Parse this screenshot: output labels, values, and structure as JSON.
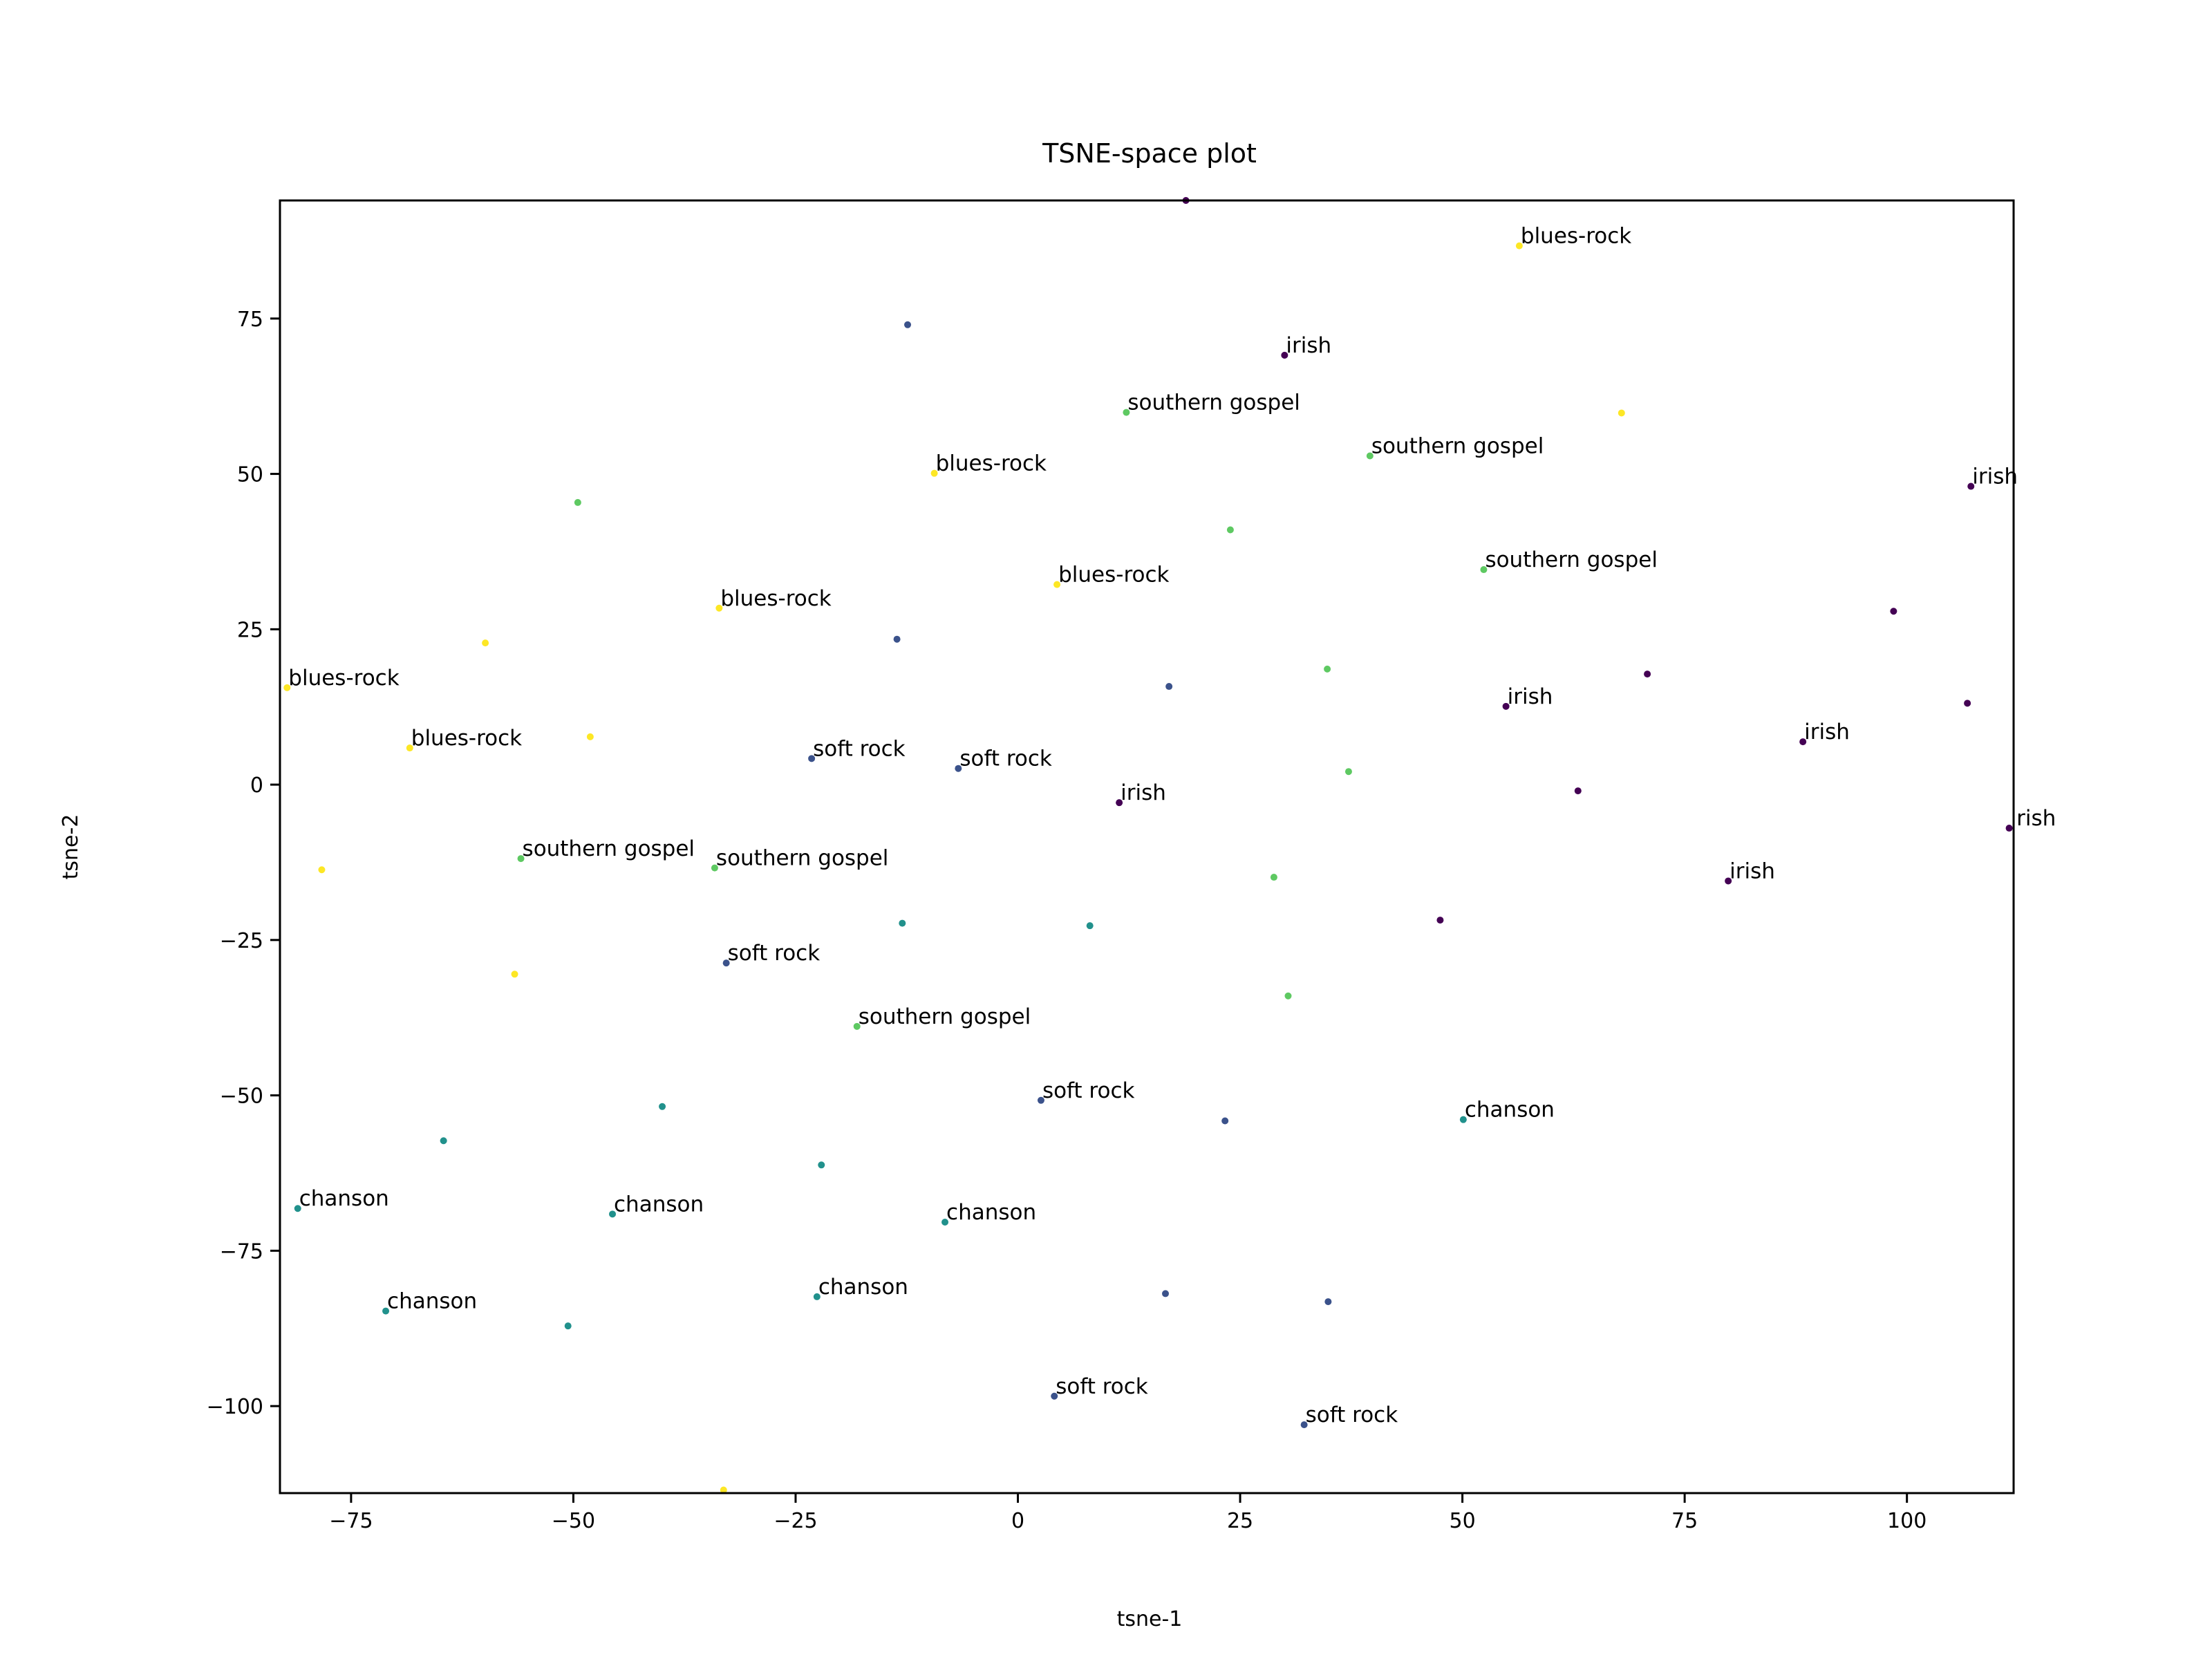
{
  "chart_data": {
    "type": "scatter",
    "title": "TSNE-space plot",
    "xlabel": "tsne-1",
    "ylabel": "tsne-2",
    "xlim": [
      -83,
      112
    ],
    "ylim": [
      -114,
      94
    ],
    "grid": false,
    "xticks": [
      -75,
      -50,
      -25,
      0,
      25,
      50,
      75,
      100
    ],
    "yticks": [
      -100,
      -75,
      -50,
      -25,
      0,
      25,
      50,
      75
    ],
    "xtick_labels": [
      "−75",
      "−50",
      "−25",
      "0",
      "25",
      "50",
      "75",
      "100"
    ],
    "ytick_labels": [
      "−100",
      "−75",
      "−50",
      "−25",
      "0",
      "25",
      "50",
      "75"
    ],
    "colors": {
      "irish": "#440154",
      "soft rock": "#3b528b",
      "chanson": "#21918c",
      "southern gospel": "#5ec962",
      "blues-rock": "#fde725"
    },
    "points": [
      {
        "x": 56.4,
        "y": 86.7,
        "label": "blues-rock",
        "color": "#fde725"
      },
      {
        "x": 67.9,
        "y": 59.8,
        "label": "",
        "color": "#fde725"
      },
      {
        "x": -9.4,
        "y": 50.1,
        "label": "blues-rock",
        "color": "#fde725"
      },
      {
        "x": 4.4,
        "y": 32.2,
        "label": "blues-rock",
        "color": "#fde725"
      },
      {
        "x": -33.6,
        "y": 28.4,
        "label": "blues-rock",
        "color": "#fde725"
      },
      {
        "x": -59.9,
        "y": 22.8,
        "label": "",
        "color": "#fde725"
      },
      {
        "x": -82.2,
        "y": 15.6,
        "label": "blues-rock",
        "color": "#fde725"
      },
      {
        "x": -68.4,
        "y": 5.9,
        "label": "blues-rock",
        "color": "#fde725"
      },
      {
        "x": -48.1,
        "y": 7.7,
        "label": "",
        "color": "#fde725"
      },
      {
        "x": -78.3,
        "y": -13.7,
        "label": "",
        "color": "#fde725"
      },
      {
        "x": -56.6,
        "y": -30.5,
        "label": "",
        "color": "#fde725"
      },
      {
        "x": -33.1,
        "y": -113.5,
        "label": "",
        "color": "#fde725"
      },
      {
        "x": 30.0,
        "y": 69.1,
        "label": "irish",
        "color": "#440154"
      },
      {
        "x": 18.9,
        "y": 94.0,
        "label": "",
        "color": "#440154"
      },
      {
        "x": 107.2,
        "y": 48.0,
        "label": "irish",
        "color": "#440154"
      },
      {
        "x": 98.5,
        "y": 27.9,
        "label": "",
        "color": "#440154"
      },
      {
        "x": 70.8,
        "y": 17.8,
        "label": "",
        "color": "#440154"
      },
      {
        "x": 54.9,
        "y": 12.6,
        "label": "irish",
        "color": "#440154"
      },
      {
        "x": 106.8,
        "y": 13.1,
        "label": "",
        "color": "#440154"
      },
      {
        "x": 88.3,
        "y": 6.9,
        "label": "irish",
        "color": "#440154"
      },
      {
        "x": 63.0,
        "y": -1.0,
        "label": "",
        "color": "#440154"
      },
      {
        "x": 11.4,
        "y": -2.9,
        "label": "irish",
        "color": "#440154"
      },
      {
        "x": 111.5,
        "y": -7.0,
        "label": "irish",
        "color": "#440154"
      },
      {
        "x": 79.9,
        "y": -15.5,
        "label": "irish",
        "color": "#440154"
      },
      {
        "x": 47.5,
        "y": -21.8,
        "label": "",
        "color": "#440154"
      },
      {
        "x": -12.4,
        "y": 74.0,
        "label": "",
        "color": "#3b528b"
      },
      {
        "x": -13.6,
        "y": 23.4,
        "label": "",
        "color": "#3b528b"
      },
      {
        "x": 17.0,
        "y": 15.8,
        "label": "",
        "color": "#3b528b"
      },
      {
        "x": -23.2,
        "y": 4.2,
        "label": "soft rock",
        "color": "#3b528b"
      },
      {
        "x": -6.7,
        "y": 2.6,
        "label": "soft rock",
        "color": "#3b528b"
      },
      {
        "x": -32.8,
        "y": -28.7,
        "label": "soft rock",
        "color": "#3b528b"
      },
      {
        "x": 2.6,
        "y": -50.8,
        "label": "soft rock",
        "color": "#3b528b"
      },
      {
        "x": 23.3,
        "y": -54.1,
        "label": "",
        "color": "#3b528b"
      },
      {
        "x": 16.6,
        "y": -81.9,
        "label": "",
        "color": "#3b528b"
      },
      {
        "x": 34.9,
        "y": -83.2,
        "label": "",
        "color": "#3b528b"
      },
      {
        "x": 4.1,
        "y": -98.4,
        "label": "soft rock",
        "color": "#3b528b"
      },
      {
        "x": 32.2,
        "y": -103.0,
        "label": "soft rock",
        "color": "#3b528b"
      },
      {
        "x": -13.0,
        "y": -22.3,
        "label": "",
        "color": "#21918c"
      },
      {
        "x": 8.1,
        "y": -22.7,
        "label": "",
        "color": "#21918c"
      },
      {
        "x": -64.6,
        "y": -57.3,
        "label": "",
        "color": "#21918c"
      },
      {
        "x": -40.0,
        "y": -51.8,
        "label": "",
        "color": "#21918c"
      },
      {
        "x": 50.1,
        "y": -53.9,
        "label": "chanson",
        "color": "#21918c"
      },
      {
        "x": -22.1,
        "y": -61.2,
        "label": "",
        "color": "#21918c"
      },
      {
        "x": -81.0,
        "y": -68.2,
        "label": "chanson",
        "color": "#21918c"
      },
      {
        "x": -45.6,
        "y": -69.1,
        "label": "chanson",
        "color": "#21918c"
      },
      {
        "x": -8.2,
        "y": -70.4,
        "label": "chanson",
        "color": "#21918c"
      },
      {
        "x": -22.6,
        "y": -82.4,
        "label": "chanson",
        "color": "#21918c"
      },
      {
        "x": -71.1,
        "y": -84.7,
        "label": "chanson",
        "color": "#21918c"
      },
      {
        "x": -50.6,
        "y": -87.1,
        "label": "",
        "color": "#21918c"
      },
      {
        "x": 12.2,
        "y": 59.9,
        "label": "southern gospel",
        "color": "#5ec962"
      },
      {
        "x": 39.6,
        "y": 52.9,
        "label": "southern gospel",
        "color": "#5ec962"
      },
      {
        "x": -49.5,
        "y": 45.4,
        "label": "",
        "color": "#5ec962"
      },
      {
        "x": 23.9,
        "y": 41.0,
        "label": "",
        "color": "#5ec962"
      },
      {
        "x": 52.4,
        "y": 34.6,
        "label": "southern gospel",
        "color": "#5ec962"
      },
      {
        "x": 34.8,
        "y": 18.6,
        "label": "",
        "color": "#5ec962"
      },
      {
        "x": 37.2,
        "y": 2.1,
        "label": "",
        "color": "#5ec962"
      },
      {
        "x": -55.9,
        "y": -11.9,
        "label": "southern gospel",
        "color": "#5ec962"
      },
      {
        "x": -34.1,
        "y": -13.4,
        "label": "southern gospel",
        "color": "#5ec962"
      },
      {
        "x": 28.8,
        "y": -14.9,
        "label": "",
        "color": "#5ec962"
      },
      {
        "x": 30.4,
        "y": -34.0,
        "label": "",
        "color": "#5ec962"
      },
      {
        "x": -18.1,
        "y": -38.9,
        "label": "southern gospel",
        "color": "#5ec962"
      }
    ]
  }
}
